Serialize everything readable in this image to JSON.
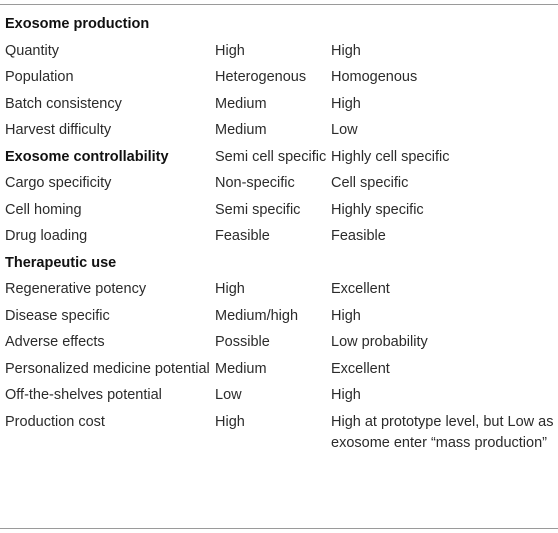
{
  "rows": [
    {
      "type": "section",
      "label": "Exosome production",
      "col2": "",
      "col3": ""
    },
    {
      "type": "row",
      "label": "Quantity",
      "col2": "High",
      "col3": "High"
    },
    {
      "type": "row",
      "label": "Population",
      "col2": "Heterogenous",
      "col3": "Homogenous"
    },
    {
      "type": "row",
      "label": "Batch consistency",
      "col2": "Medium",
      "col3": "High"
    },
    {
      "type": "row",
      "label": "Harvest difficulty",
      "col2": "Medium",
      "col3": "Low"
    },
    {
      "type": "section",
      "label": "Exosome controllability",
      "col2": "Semi cell specific",
      "col3": "Highly cell specific"
    },
    {
      "type": "row",
      "label": "Cargo specificity",
      "col2": "Non-specific",
      "col3": "Cell specific"
    },
    {
      "type": "row",
      "label": "Cell homing",
      "col2": "Semi specific",
      "col3": "Highly specific"
    },
    {
      "type": "row",
      "label": "Drug loading",
      "col2": "Feasible",
      "col3": "Feasible"
    },
    {
      "type": "section",
      "label": "Therapeutic use",
      "col2": "",
      "col3": ""
    },
    {
      "type": "row",
      "label": "Regenerative potency",
      "col2": "High",
      "col3": "Excellent"
    },
    {
      "type": "row",
      "label": "Disease specific",
      "col2": "Medium/high",
      "col3": "High"
    },
    {
      "type": "row",
      "label": "Adverse effects",
      "col2": "Possible",
      "col3": "Low probability"
    },
    {
      "type": "row",
      "label": "Personalized medicine potential",
      "col2": "Medium",
      "col3": "Excellent"
    },
    {
      "type": "row",
      "label": "Off-the-shelves potential",
      "col2": "Low",
      "col3": "High"
    },
    {
      "type": "row",
      "label": "Production cost",
      "col2": "High",
      "col3": "High at prototype level, but Low as exosome enter “mass production”"
    }
  ]
}
